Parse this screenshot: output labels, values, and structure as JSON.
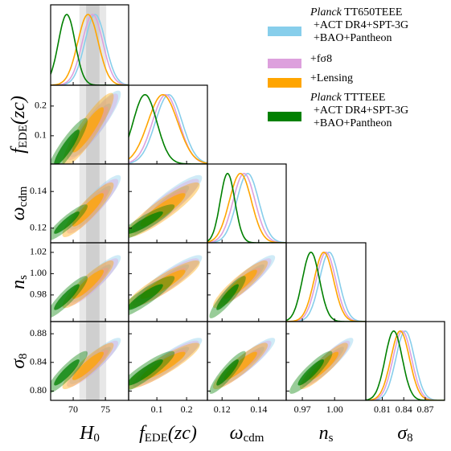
{
  "chart_data": {
    "type": "corner",
    "params": [
      {
        "label": "H",
        "sub": "0",
        "lim": [
          66.5,
          78.6
        ],
        "xticks": [
          70,
          75
        ]
      },
      {
        "label": "f",
        "sub": "EDE",
        "suffix": "(zc)",
        "lim": [
          0.005,
          0.27
        ],
        "xticks": [
          0.1,
          0.2
        ],
        "yticks": [
          0.1,
          0.2
        ]
      },
      {
        "label": "ω",
        "sub": "cdm",
        "lim": [
          0.112,
          0.155
        ],
        "xticks": [
          0.12,
          0.14
        ],
        "yticks": [
          0.12,
          0.14
        ]
      },
      {
        "label": "n",
        "sub": "s",
        "lim": [
          0.955,
          1.029
        ],
        "xticks": [
          0.97,
          {
            "value": 1.0,
            "label": "1.00"
          }
        ],
        "yticks": [
          0.98,
          {
            "value": 1.0,
            "label": "1.00"
          },
          1.02
        ]
      },
      {
        "label": "σ",
        "sub": "8",
        "lim": [
          0.787,
          0.897
        ],
        "xticks": [
          0.81,
          0.84,
          0.87
        ],
        "yticks": [
          {
            "value": 0.8,
            "label": "0.80"
          },
          0.84,
          0.88
        ]
      }
    ],
    "reference": {
      "center": 73.04,
      "sigma": 1.04
    },
    "series": [
      {
        "name": "Planck TT650TEEE +ACT DR4+SPT-3G +BAO+Pantheon",
        "color": "#87CEEB",
        "mean": [
          73.4,
          0.14,
          0.134,
          0.995,
          0.842
        ],
        "sigma": [
          1.6,
          0.045,
          0.006,
          0.009,
          0.013
        ],
        "correlation": 0.9
      },
      {
        "name": "+fσ8",
        "color": "#DDA0DD",
        "mean": [
          73.0,
          0.13,
          0.132,
          0.992,
          0.838
        ],
        "sigma": [
          1.6,
          0.045,
          0.006,
          0.009,
          0.013
        ],
        "correlation": 0.9
      },
      {
        "name": "+Lensing",
        "color": "#FFA500",
        "mean": [
          72.3,
          0.12,
          0.13,
          0.99,
          0.835
        ],
        "sigma": [
          1.6,
          0.05,
          0.006,
          0.009,
          0.013
        ],
        "correlation": 0.9
      },
      {
        "name": "Planck TTTEEE +ACT DR4+SPT-3G +BAO+Pantheon",
        "color": "#008000",
        "mean": [
          69.0,
          0.06,
          0.123,
          0.978,
          0.826
        ],
        "sigma": [
          1.3,
          0.04,
          0.004,
          0.008,
          0.012
        ],
        "correlation": 0.9
      }
    ]
  }
}
